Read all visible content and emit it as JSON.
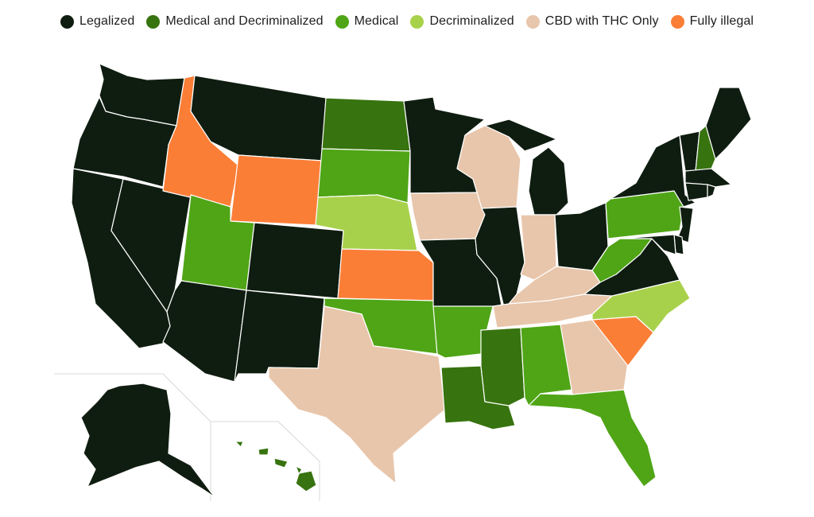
{
  "colors": {
    "legalized": "#0f1d10",
    "medical_decriminalized": "#37730f",
    "medical": "#4fa516",
    "decriminalized": "#a8d14b",
    "cbd_thc_only": "#e8c6ab",
    "fully_illegal": "#fb7e37"
  },
  "legend": [
    {
      "key": "legalized",
      "label": "Legalized",
      "color": "#0f1d10"
    },
    {
      "key": "medical_decriminalized",
      "label": "Medical and Decriminalized",
      "color": "#37730f"
    },
    {
      "key": "medical",
      "label": "Medical",
      "color": "#4fa516"
    },
    {
      "key": "decriminalized",
      "label": "Decriminalized",
      "color": "#a8d14b"
    },
    {
      "key": "cbd_thc_only",
      "label": "CBD with THC Only",
      "color": "#e8c6ab"
    },
    {
      "key": "fully_illegal",
      "label": "Fully illegal",
      "color": "#fb7e37"
    }
  ],
  "states": [
    {
      "id": "WA",
      "status": "legalized"
    },
    {
      "id": "OR",
      "status": "legalized"
    },
    {
      "id": "CA",
      "status": "legalized"
    },
    {
      "id": "NV",
      "status": "legalized"
    },
    {
      "id": "ID",
      "status": "fully_illegal"
    },
    {
      "id": "MT",
      "status": "legalized"
    },
    {
      "id": "WY",
      "status": "fully_illegal"
    },
    {
      "id": "UT",
      "status": "medical"
    },
    {
      "id": "AZ",
      "status": "legalized"
    },
    {
      "id": "CO",
      "status": "legalized"
    },
    {
      "id": "NM",
      "status": "legalized"
    },
    {
      "id": "ND",
      "status": "medical_decriminalized"
    },
    {
      "id": "SD",
      "status": "medical"
    },
    {
      "id": "NE",
      "status": "decriminalized"
    },
    {
      "id": "KS",
      "status": "fully_illegal"
    },
    {
      "id": "OK",
      "status": "medical"
    },
    {
      "id": "TX",
      "status": "cbd_thc_only"
    },
    {
      "id": "MN",
      "status": "legalized"
    },
    {
      "id": "IA",
      "status": "cbd_thc_only"
    },
    {
      "id": "MO",
      "status": "legalized"
    },
    {
      "id": "AR",
      "status": "medical"
    },
    {
      "id": "LA",
      "status": "medical_decriminalized"
    },
    {
      "id": "WI",
      "status": "cbd_thc_only"
    },
    {
      "id": "IL",
      "status": "legalized"
    },
    {
      "id": "MI",
      "status": "legalized"
    },
    {
      "id": "IN",
      "status": "cbd_thc_only"
    },
    {
      "id": "OH",
      "status": "legalized"
    },
    {
      "id": "KY",
      "status": "cbd_thc_only"
    },
    {
      "id": "TN",
      "status": "cbd_thc_only"
    },
    {
      "id": "MS",
      "status": "medical_decriminalized"
    },
    {
      "id": "AL",
      "status": "medical"
    },
    {
      "id": "GA",
      "status": "cbd_thc_only"
    },
    {
      "id": "FL",
      "status": "medical"
    },
    {
      "id": "SC",
      "status": "fully_illegal"
    },
    {
      "id": "NC",
      "status": "decriminalized"
    },
    {
      "id": "VA",
      "status": "legalized"
    },
    {
      "id": "WV",
      "status": "medical"
    },
    {
      "id": "PA",
      "status": "medical"
    },
    {
      "id": "NY",
      "status": "legalized"
    },
    {
      "id": "VT",
      "status": "legalized"
    },
    {
      "id": "NH",
      "status": "medical_decriminalized"
    },
    {
      "id": "ME",
      "status": "legalized"
    },
    {
      "id": "MA",
      "status": "legalized"
    },
    {
      "id": "CT",
      "status": "legalized"
    },
    {
      "id": "RI",
      "status": "legalized"
    },
    {
      "id": "NJ",
      "status": "legalized"
    },
    {
      "id": "DE",
      "status": "legalized"
    },
    {
      "id": "MD",
      "status": "legalized"
    },
    {
      "id": "AK",
      "status": "legalized"
    },
    {
      "id": "HI",
      "status": "medical_decriminalized"
    }
  ]
}
